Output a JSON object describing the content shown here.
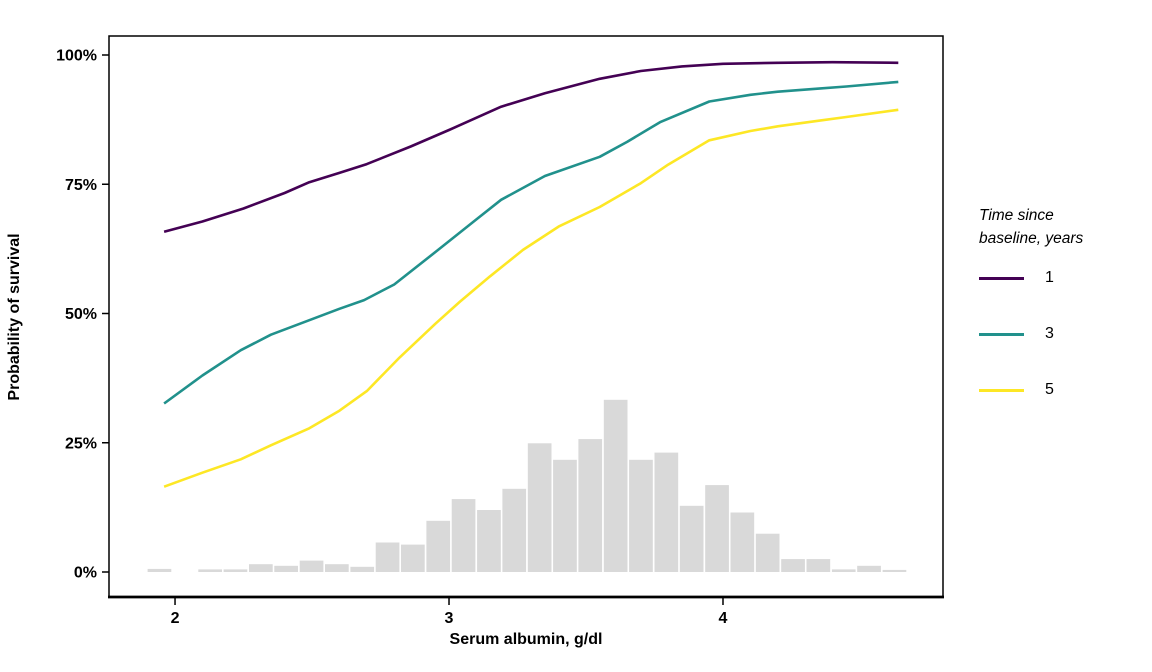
{
  "chart_data": {
    "type": "line",
    "title": "",
    "xlabel": "Serum albumin, g/dl",
    "ylabel": "Probability of survival",
    "xlim": [
      1.759,
      4.803
    ],
    "ylim": [
      0,
      100
    ],
    "x_ticks": [
      2,
      3,
      4
    ],
    "y_ticks": [
      0,
      25,
      50,
      75,
      100
    ],
    "y_tick_labels": [
      "0%",
      "25%",
      "50%",
      "75%",
      "100%"
    ],
    "grid": "off",
    "legend": {
      "title": "Time since baseline, years",
      "title_line1": "Time since",
      "title_line2": "baseline, years",
      "position": "right",
      "entries": [
        {
          "label": "1",
          "color": "#440154"
        },
        {
          "label": "3",
          "color": "#21918c"
        },
        {
          "label": "5",
          "color": "#fde725"
        }
      ]
    },
    "series": [
      {
        "name": "1",
        "color": "#440154",
        "points": [
          [
            1.96,
            65.8
          ],
          [
            2.1,
            67.8
          ],
          [
            2.25,
            70.3
          ],
          [
            2.4,
            73.3
          ],
          [
            2.49,
            75.4
          ],
          [
            2.6,
            77.2
          ],
          [
            2.7,
            78.9
          ],
          [
            2.86,
            82.3
          ],
          [
            3.0,
            85.5
          ],
          [
            3.19,
            90.0
          ],
          [
            3.35,
            92.6
          ],
          [
            3.55,
            95.4
          ],
          [
            3.7,
            96.9
          ],
          [
            3.85,
            97.8
          ],
          [
            4.0,
            98.3
          ],
          [
            4.2,
            98.5
          ],
          [
            4.4,
            98.6
          ],
          [
            4.64,
            98.5
          ]
        ]
      },
      {
        "name": "3",
        "color": "#21918c",
        "points": [
          [
            1.96,
            32.6
          ],
          [
            2.1,
            38.0
          ],
          [
            2.24,
            42.9
          ],
          [
            2.35,
            45.9
          ],
          [
            2.49,
            48.7
          ],
          [
            2.6,
            50.9
          ],
          [
            2.69,
            52.6
          ],
          [
            2.8,
            55.6
          ],
          [
            2.96,
            62.3
          ],
          [
            3.1,
            68.2
          ],
          [
            3.19,
            72.0
          ],
          [
            3.35,
            76.6
          ],
          [
            3.55,
            80.3
          ],
          [
            3.65,
            83.2
          ],
          [
            3.77,
            87.0
          ],
          [
            3.95,
            91.0
          ],
          [
            4.1,
            92.3
          ],
          [
            4.2,
            92.9
          ],
          [
            4.35,
            93.5
          ],
          [
            4.45,
            93.9
          ],
          [
            4.64,
            94.8
          ]
        ]
      },
      {
        "name": "5",
        "color": "#fde725",
        "points": [
          [
            1.96,
            16.5
          ],
          [
            2.1,
            19.2
          ],
          [
            2.24,
            21.8
          ],
          [
            2.35,
            24.5
          ],
          [
            2.49,
            27.8
          ],
          [
            2.6,
            31.2
          ],
          [
            2.7,
            35.0
          ],
          [
            2.82,
            41.5
          ],
          [
            2.95,
            48.0
          ],
          [
            3.04,
            52.3
          ],
          [
            3.15,
            57.2
          ],
          [
            3.27,
            62.3
          ],
          [
            3.4,
            66.8
          ],
          [
            3.55,
            70.6
          ],
          [
            3.7,
            75.2
          ],
          [
            3.8,
            78.8
          ],
          [
            3.95,
            83.5
          ],
          [
            4.1,
            85.3
          ],
          [
            4.2,
            86.2
          ],
          [
            4.35,
            87.3
          ],
          [
            4.45,
            88.0
          ],
          [
            4.64,
            89.4
          ]
        ]
      }
    ],
    "histogram": {
      "fill": "#d9d9d9",
      "bin_start": 1.897,
      "bin_width": 0.0925,
      "heights_percent": [
        0.6,
        0,
        0.5,
        0.5,
        1.5,
        1.2,
        2.2,
        1.5,
        1.0,
        5.7,
        5.3,
        9.9,
        14.1,
        12.0,
        16.1,
        24.9,
        21.7,
        25.7,
        33.3,
        21.7,
        23.1,
        12.8,
        16.8,
        11.5,
        7.4,
        2.5,
        2.5,
        0.5,
        1.2,
        0.4
      ]
    }
  }
}
